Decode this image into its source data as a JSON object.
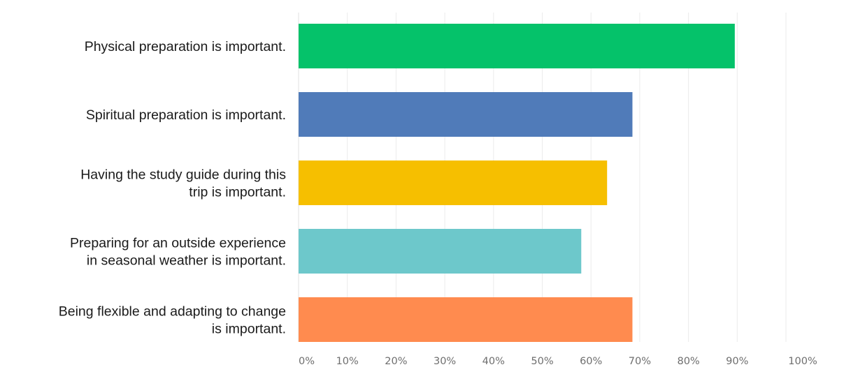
{
  "chart_data": {
    "type": "bar",
    "orientation": "horizontal",
    "categories": [
      [
        "Physical preparation is important."
      ],
      [
        "Spiritual preparation is important."
      ],
      [
        "Having the study guide during this",
        "trip is important."
      ],
      [
        "Preparing for an outside experience",
        "in seasonal weather is important."
      ],
      [
        "Being flexible and adapting to change",
        "is important."
      ]
    ],
    "values": [
      89.5,
      68.5,
      63.3,
      58.0,
      68.5
    ],
    "colors": [
      "#05c26a",
      "#507bb9",
      "#f6bf00",
      "#6dc8cb",
      "#ff8b4f"
    ],
    "xlim": [
      0,
      100
    ],
    "x_ticks": [
      "0%",
      "10%",
      "20%",
      "30%",
      "40%",
      "50%",
      "60%",
      "70%",
      "80%",
      "90%",
      "100%"
    ],
    "grid": true
  }
}
